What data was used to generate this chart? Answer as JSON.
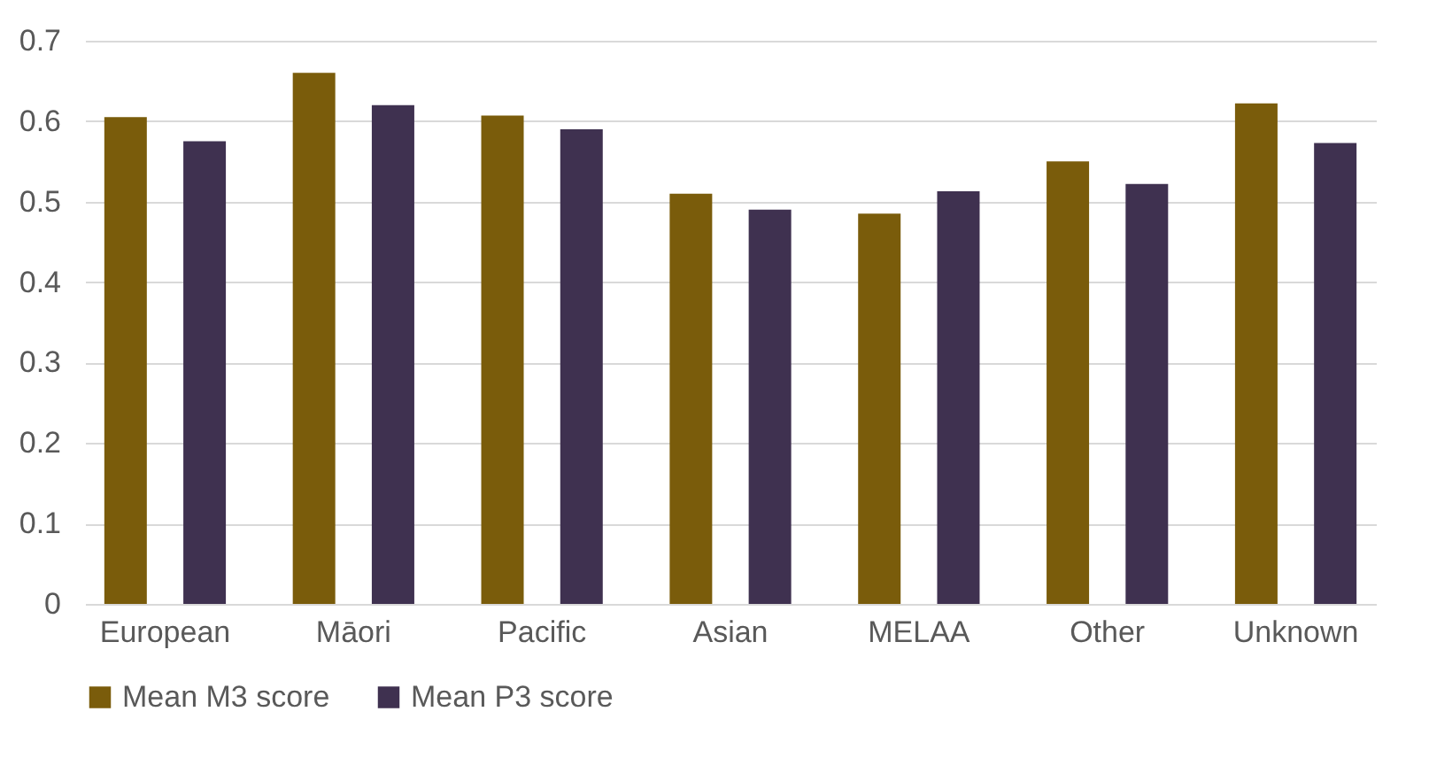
{
  "chart_data": {
    "type": "bar",
    "categories": [
      "European",
      "Māori",
      "Pacific",
      "Asian",
      "MELAA",
      "Other",
      "Unknown"
    ],
    "series": [
      {
        "name": "Mean M3 score",
        "color": "#7a5c0b",
        "values": [
          0.605,
          0.66,
          0.607,
          0.51,
          0.485,
          0.55,
          0.622
        ]
      },
      {
        "name": "Mean P3 score",
        "color": "#3f3150",
        "values": [
          0.575,
          0.62,
          0.59,
          0.49,
          0.513,
          0.522,
          0.573
        ]
      }
    ],
    "ylim": [
      0,
      0.7
    ],
    "yticks": [
      0,
      0.1,
      0.2,
      0.3,
      0.4,
      0.5,
      0.6,
      0.7
    ],
    "grid": "y",
    "legend": "bottom"
  }
}
